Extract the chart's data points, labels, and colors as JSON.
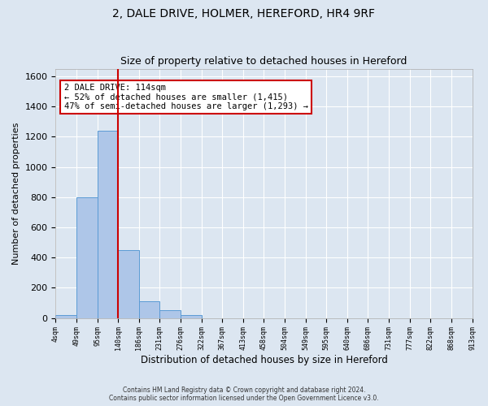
{
  "title": "2, DALE DRIVE, HOLMER, HEREFORD, HR4 9RF",
  "subtitle": "Size of property relative to detached houses in Hereford",
  "xlabel": "Distribution of detached houses by size in Hereford",
  "ylabel": "Number of detached properties",
  "footer_line1": "Contains HM Land Registry data © Crown copyright and database right 2024.",
  "footer_line2": "Contains public sector information licensed under the Open Government Licence v3.0.",
  "bin_labels": [
    "4sqm",
    "49sqm",
    "95sqm",
    "140sqm",
    "186sqm",
    "231sqm",
    "276sqm",
    "322sqm",
    "367sqm",
    "413sqm",
    "458sqm",
    "504sqm",
    "549sqm",
    "595sqm",
    "640sqm",
    "686sqm",
    "731sqm",
    "777sqm",
    "822sqm",
    "868sqm",
    "913sqm"
  ],
  "bar_values": [
    20,
    800,
    1240,
    450,
    110,
    50,
    20,
    0,
    0,
    0,
    0,
    0,
    0,
    0,
    0,
    0,
    0,
    0,
    0,
    0
  ],
  "bar_color": "#aec6e8",
  "bar_edge_color": "#5b9bd5",
  "property_line_x": 3,
  "property_line_color": "#cc0000",
  "annotation_text": "2 DALE DRIVE: 114sqm\n← 52% of detached houses are smaller (1,415)\n47% of semi-detached houses are larger (1,293) →",
  "annotation_box_color": "#ffffff",
  "annotation_box_edge_color": "#cc0000",
  "ylim": [
    0,
    1650
  ],
  "yticks": [
    0,
    200,
    400,
    600,
    800,
    1000,
    1200,
    1400,
    1600
  ],
  "background_color": "#dce6f1",
  "plot_background_color": "#dce6f1",
  "grid_color": "#ffffff",
  "title_fontsize": 10,
  "subtitle_fontsize": 9,
  "annotation_fontsize": 7.5
}
